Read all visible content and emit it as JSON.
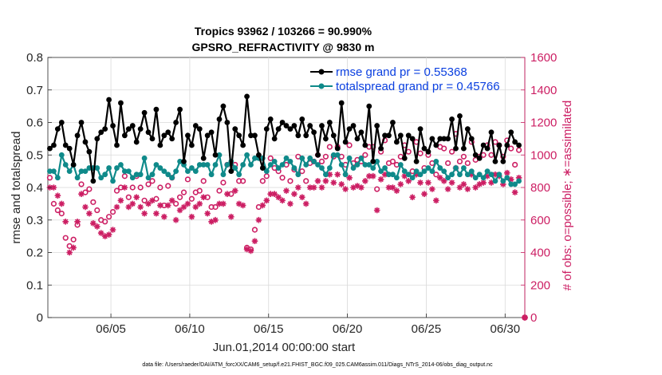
{
  "chart_data": {
    "type": "line",
    "title_line1": "Tropics 93962 / 103266 = 90.990%",
    "title_line2": "GPSRO_REFRACTIVITY @ 9830 m",
    "xlabel": "Jun.01,2014 00:00:00 start",
    "ylabel_left": "rmse and totalspread",
    "ylabel_right": "# of obs: o=possible; ∗=assimilated",
    "footer": "data file: /Users/raeder/DAI/ATM_forcXX/CAM6_setup/f.e21.FHIST_BGC.f09_025.CAM6assim.011/Diags_NTrS_2014-06/obs_diag_output.nc",
    "x_range": [
      1.0,
      31.25
    ],
    "ylim_left": [
      0,
      0.8
    ],
    "ylim_right": [
      0,
      1600
    ],
    "x_ticks": [
      {
        "value": 5,
        "label": "06/05"
      },
      {
        "value": 10,
        "label": "06/10"
      },
      {
        "value": 15,
        "label": "06/15"
      },
      {
        "value": 20,
        "label": "06/20"
      },
      {
        "value": 25,
        "label": "06/25"
      },
      {
        "value": 30,
        "label": "06/30"
      }
    ],
    "y_ticks_left": [
      "0",
      "0.1",
      "0.2",
      "0.3",
      "0.4",
      "0.5",
      "0.6",
      "0.7",
      "0.8"
    ],
    "y_ticks_right": [
      "0",
      "200",
      "400",
      "600",
      "800",
      "1000",
      "1200",
      "1400",
      "1600"
    ],
    "x_start": 1.125,
    "x_step": 0.25,
    "series": [
      {
        "name": "rmse grand pr = 0.55368",
        "color": "#000000",
        "marker": "dot",
        "values": [
          0.52,
          0.53,
          0.58,
          0.6,
          0.53,
          0.52,
          0.47,
          0.56,
          0.6,
          0.54,
          0.51,
          0.42,
          0.55,
          0.57,
          0.58,
          0.67,
          0.59,
          0.53,
          0.66,
          0.56,
          0.58,
          0.59,
          0.54,
          0.58,
          0.63,
          0.57,
          0.55,
          0.64,
          0.53,
          0.56,
          0.57,
          0.55,
          0.6,
          0.64,
          0.48,
          0.56,
          0.53,
          0.59,
          0.58,
          0.49,
          0.56,
          0.57,
          0.5,
          0.61,
          0.65,
          0.6,
          0.45,
          0.58,
          0.56,
          0.53,
          0.68,
          0.56,
          0.56,
          0.5,
          0.46,
          0.58,
          0.61,
          0.55,
          0.58,
          0.6,
          0.59,
          0.58,
          0.59,
          0.56,
          0.61,
          0.56,
          0.59,
          0.57,
          0.5,
          0.59,
          0.55,
          0.6,
          0.56,
          0.52,
          0.66,
          0.54,
          0.58,
          0.59,
          0.55,
          0.57,
          0.53,
          0.65,
          0.48,
          0.59,
          0.52,
          0.56,
          0.56,
          0.6,
          0.54,
          0.56,
          0.49,
          0.56,
          0.55,
          0.48,
          0.58,
          0.52,
          0.51,
          0.55,
          0.53,
          0.55,
          0.55,
          0.55,
          0.61,
          0.52,
          0.62,
          0.52,
          0.58,
          0.55,
          0.5,
          0.49,
          0.53,
          0.52,
          0.57,
          0.48,
          0.53,
          0.48,
          0.53,
          0.57,
          0.54,
          0.53
        ]
      },
      {
        "name": "totalspread grand pr = 0.45766",
        "color": "#0f8a8a",
        "marker": "dot",
        "values": [
          0.45,
          0.45,
          0.43,
          0.5,
          0.47,
          0.45,
          0.47,
          0.43,
          0.45,
          0.45,
          0.46,
          0.46,
          0.46,
          0.43,
          0.44,
          0.46,
          0.42,
          0.46,
          0.47,
          0.45,
          0.45,
          0.43,
          0.44,
          0.44,
          0.49,
          0.43,
          0.44,
          0.47,
          0.46,
          0.45,
          0.44,
          0.43,
          0.45,
          0.48,
          0.47,
          0.45,
          0.46,
          0.45,
          0.47,
          0.47,
          0.47,
          0.44,
          0.47,
          0.5,
          0.44,
          0.47,
          0.48,
          0.46,
          0.44,
          0.47,
          0.5,
          0.47,
          0.49,
          0.49,
          0.49,
          0.45,
          0.47,
          0.48,
          0.46,
          0.47,
          0.49,
          0.48,
          0.46,
          0.44,
          0.49,
          0.47,
          0.49,
          0.48,
          0.47,
          0.46,
          0.44,
          0.46,
          0.5,
          0.5,
          0.47,
          0.44,
          0.49,
          0.46,
          0.47,
          0.49,
          0.47,
          0.47,
          0.46,
          0.48,
          0.45,
          0.46,
          0.44,
          0.44,
          0.43,
          0.47,
          0.45,
          0.44,
          0.43,
          0.45,
          0.44,
          0.45,
          0.46,
          0.45,
          0.48,
          0.46,
          0.45,
          0.43,
          0.44,
          0.46,
          0.44,
          0.46,
          0.44,
          0.45,
          0.43,
          0.44,
          0.43,
          0.45,
          0.44,
          0.42,
          0.44,
          0.42,
          0.43,
          0.41,
          0.41,
          0.42
        ]
      },
      {
        "name": "# of obs possible",
        "color": "#cc1e63",
        "marker": "circle",
        "axis": "right",
        "values": [
          860,
          700,
          660,
          640,
          490,
          440,
          480,
          570,
          820,
          770,
          790,
          710,
          660,
          600,
          590,
          620,
          650,
          780,
          800,
          870,
          740,
          800,
          870,
          800,
          720,
          820,
          840,
          730,
          800,
          690,
          810,
          860,
          700,
          740,
          770,
          850,
          730,
          770,
          780,
          840,
          740,
          680,
          680,
          780,
          830,
          940,
          760,
          940,
          840,
          840,
          430,
          420,
          540,
          680,
          840,
          870,
          980,
          920,
          900,
          860,
          940,
          840,
          910,
          990,
          900,
          840,
          950,
          960,
          1000,
          960,
          990,
          1050,
          990,
          1050,
          990,
          940,
          1060,
          950,
          970,
          960,
          1000,
          1050,
          1050,
          790,
          1020,
          1090,
          950,
          960,
          940,
          990,
          1060,
          1020,
          900,
          1080,
          1010,
          920,
          1000,
          950,
          880,
          1050,
          1040,
          950,
          1020,
          1130,
          960,
          990,
          950,
          1080,
          970,
          990,
          1000,
          1060,
          1000,
          1080,
          1060,
          990,
          1090,
          1040,
          940,
          1030
        ]
      },
      {
        "name": "# of obs assimilated",
        "color": "#cc1e63",
        "marker": "star",
        "axis": "right",
        "values": [
          800,
          800,
          750,
          700,
          590,
          400,
          430,
          590,
          760,
          680,
          640,
          580,
          560,
          520,
          500,
          510,
          540,
          680,
          720,
          800,
          680,
          700,
          740,
          680,
          640,
          700,
          720,
          640,
          690,
          620,
          690,
          720,
          600,
          660,
          680,
          700,
          620,
          680,
          700,
          740,
          640,
          590,
          600,
          700,
          700,
          760,
          620,
          780,
          700,
          690,
          420,
          410,
          470,
          600,
          690,
          720,
          760,
          760,
          740,
          720,
          780,
          700,
          760,
          800,
          740,
          700,
          800,
          800,
          840,
          800,
          840,
          880,
          830,
          880,
          820,
          790,
          860,
          800,
          810,
          800,
          840,
          870,
          870,
          660,
          850,
          880,
          800,
          800,
          780,
          820,
          870,
          840,
          740,
          880,
          830,
          760,
          830,
          790,
          720,
          860,
          840,
          790,
          830,
          920,
          800,
          820,
          790,
          880,
          800,
          820,
          830,
          870,
          830,
          880,
          870,
          820,
          890,
          850,
          770,
          860
        ]
      }
    ]
  }
}
